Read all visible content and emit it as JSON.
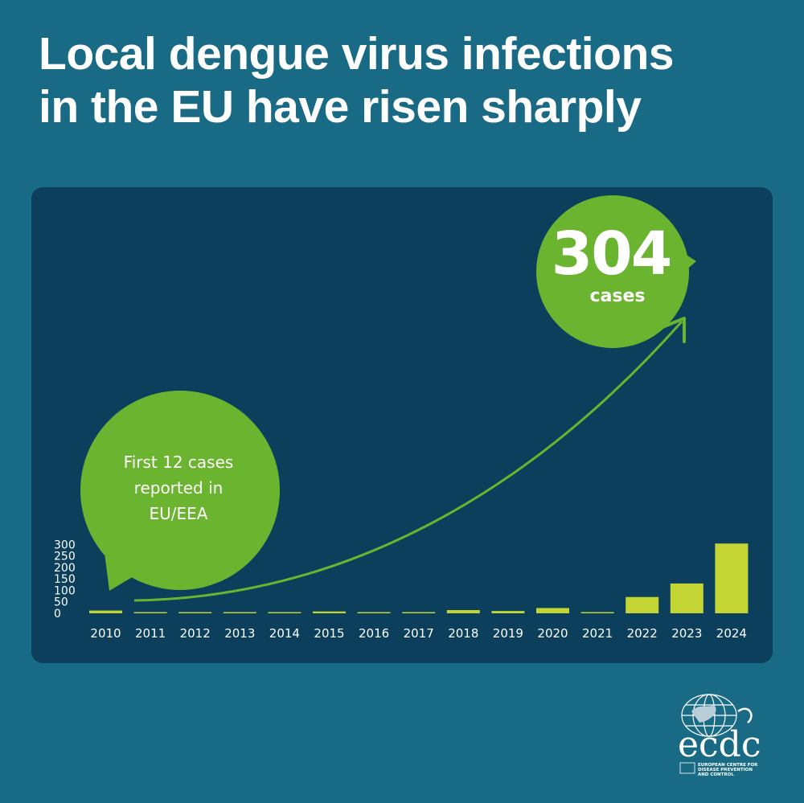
{
  "title": {
    "line1": "Local dengue virus infections",
    "line2": "in the EU have risen sharply"
  },
  "chart_data": {
    "type": "bar",
    "categories": [
      "2010",
      "2011",
      "2012",
      "2013",
      "2014",
      "2015",
      "2016",
      "2017",
      "2018",
      "2019",
      "2020",
      "2021",
      "2022",
      "2023",
      "2024"
    ],
    "values": [
      12,
      0,
      0,
      1,
      4,
      8,
      0,
      0,
      14,
      10,
      23,
      2,
      71,
      130,
      304
    ],
    "ylim": [
      0,
      310
    ],
    "yticks": [
      "0",
      "50",
      "100",
      "150",
      "200",
      "250",
      "300"
    ],
    "xlabel": "",
    "ylabel": "",
    "grid": false,
    "bar_color": "#c2d535",
    "annotations": {
      "callout_big": {
        "value": "304",
        "label": "cases"
      },
      "callout_small": {
        "lines": [
          "First 12 cases",
          "reported in",
          "EU/EEA"
        ]
      }
    }
  },
  "colors": {
    "background": "#196a84",
    "panel": "#0b3f5b",
    "bars": "#c2d535",
    "bubble": "#6bb42f"
  },
  "logo": {
    "name": "ecdc",
    "tagline_lines": [
      "EUROPEAN CENTRE FOR",
      "DISEASE PREVENTION",
      "AND CONTROL"
    ]
  }
}
